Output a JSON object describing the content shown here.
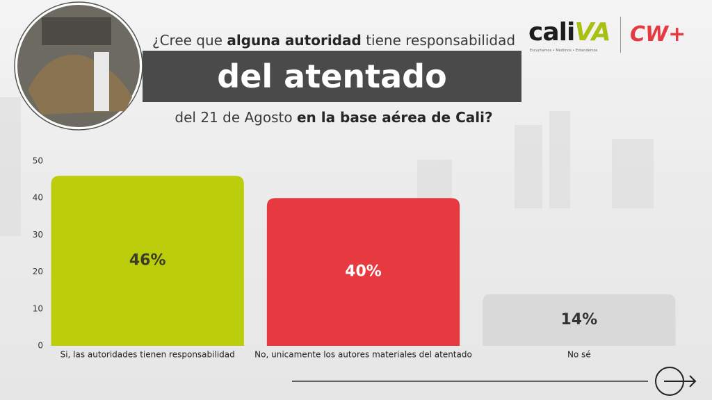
{
  "header": {
    "question_parts": [
      "¿Cree que",
      "alguna autoridad",
      "tiene responsabilidad"
    ],
    "banner": "del atentado",
    "subtitle_parts": [
      "del 21 de Agosto",
      "en la base aérea de Cali?"
    ]
  },
  "logos": {
    "caliva_parts": [
      "cali",
      "VA"
    ],
    "caliva_tagline": "Escuchamos • Medimos • Entendemos",
    "cw": "CW+"
  },
  "chart_data": {
    "type": "bar",
    "categories": [
      "Si, las autoridades tienen responsabilidad",
      "No, unicamente los autores materiales del atentado",
      "No sé"
    ],
    "values": [
      46,
      40,
      14
    ],
    "value_labels": [
      "46%",
      "40%",
      "14%"
    ],
    "colors": [
      "#bccd0c",
      "#e63a40",
      "#d9d9d9"
    ],
    "label_colors": [
      "#3b3b2a",
      "#ffffff",
      "#333333"
    ],
    "ylim": [
      0,
      50
    ],
    "yticks": [
      0,
      10,
      20,
      30,
      40,
      50
    ],
    "grid": false
  }
}
